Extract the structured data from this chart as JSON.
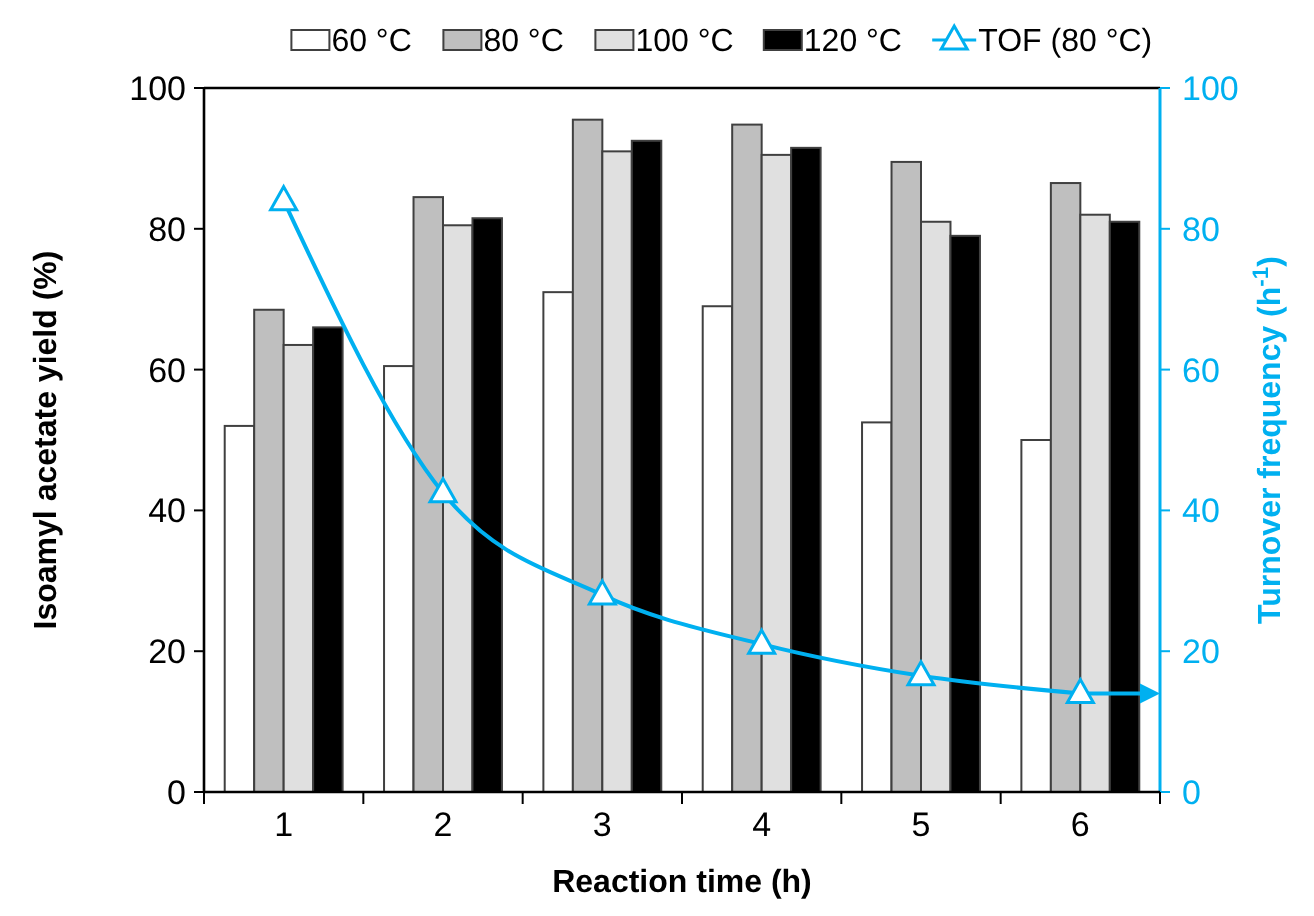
{
  "chart_data": {
    "type": "bar",
    "xlabel": "Reaction time (h)",
    "ylabel": "Isoamyl acetate yield (%)",
    "y2label": "Turnover frequency (h$^{-1}$)",
    "categories": [
      "1",
      "2",
      "3",
      "4",
      "5",
      "6"
    ],
    "series": [
      {
        "name": "60 °C",
        "color": "#ffffff",
        "values": [
          52,
          60.5,
          71,
          69,
          52.5,
          50
        ]
      },
      {
        "name": "80 °C",
        "color": "#bfbfbf",
        "values": [
          68.5,
          84.5,
          95.5,
          94.8,
          89.5,
          86.5
        ]
      },
      {
        "name": "100 °C",
        "color": "#e0e0e0",
        "values": [
          63.5,
          80.5,
          91,
          90.5,
          81,
          82
        ]
      },
      {
        "name": "120 °C",
        "color": "#000000",
        "values": [
          66,
          81.5,
          92.5,
          91.5,
          79,
          81
        ]
      },
      {
        "name": "TOF (80 °C)",
        "type": "line",
        "axis": "y2",
        "color": "#00b0f0",
        "marker": "triangle",
        "line_style": "solid",
        "values": [
          84,
          42.5,
          28,
          21,
          16.5,
          14
        ]
      }
    ],
    "ylim": [
      0,
      100
    ],
    "yticks": [
      0,
      20,
      40,
      60,
      80,
      100
    ],
    "y2lim": [
      0,
      100
    ],
    "y2ticks": [
      0,
      20,
      40,
      60,
      80,
      100
    ],
    "grid": false,
    "legend": "top"
  }
}
